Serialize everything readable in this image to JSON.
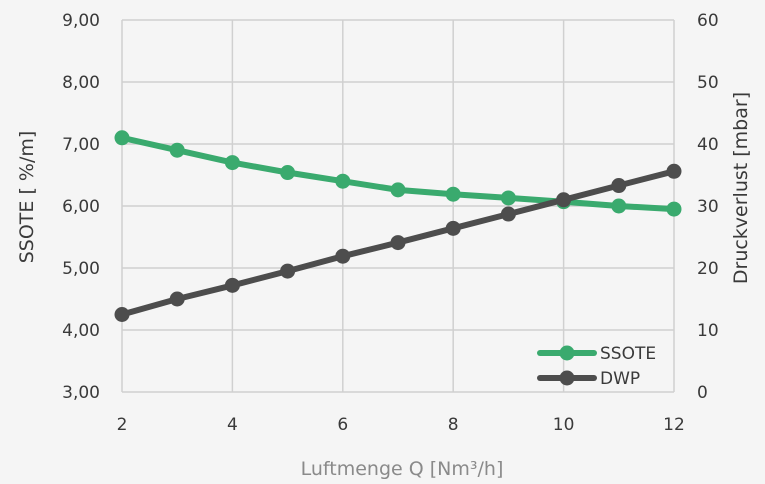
{
  "chart_data": {
    "type": "line",
    "x": [
      2,
      3,
      4,
      5,
      6,
      7,
      8,
      9,
      10,
      11,
      12
    ],
    "xlim": [
      2,
      12
    ],
    "x_ticks": [
      "2",
      "4",
      "6",
      "8",
      "10",
      "12"
    ],
    "x_tick_values": [
      2,
      4,
      6,
      8,
      10,
      12
    ],
    "xlabel": "Luftmenge  Q [Nm³/h]",
    "ylabel_left": "SSOTE [ %/m]",
    "ylabel_right": "Druckverlust [mbar]",
    "ylim_left": [
      3,
      9
    ],
    "ylim_right": [
      0,
      60
    ],
    "y_left_ticks": [
      "3,00",
      "4,00",
      "5,00",
      "6,00",
      "7,00",
      "8,00",
      "9,00"
    ],
    "y_left_tick_values": [
      3,
      4,
      5,
      6,
      7,
      8,
      9
    ],
    "y_right_ticks": [
      "0",
      "10",
      "20",
      "30",
      "40",
      "50",
      "60"
    ],
    "y_right_tick_values": [
      0,
      10,
      20,
      30,
      40,
      50,
      60
    ],
    "grid": true,
    "legend_position": "bottom-right",
    "series": [
      {
        "name": "SSOTE",
        "axis": "left",
        "color": "#3aaa6e",
        "values": [
          7.1,
          6.9,
          6.7,
          6.54,
          6.4,
          6.26,
          6.19,
          6.13,
          6.07,
          6.0,
          5.95
        ]
      },
      {
        "name": "DWP",
        "axis": "right",
        "color": "#4d4d4d",
        "values": [
          12.5,
          15.0,
          17.2,
          19.5,
          21.9,
          24.1,
          26.4,
          28.7,
          31.0,
          33.3,
          35.6
        ]
      }
    ]
  }
}
